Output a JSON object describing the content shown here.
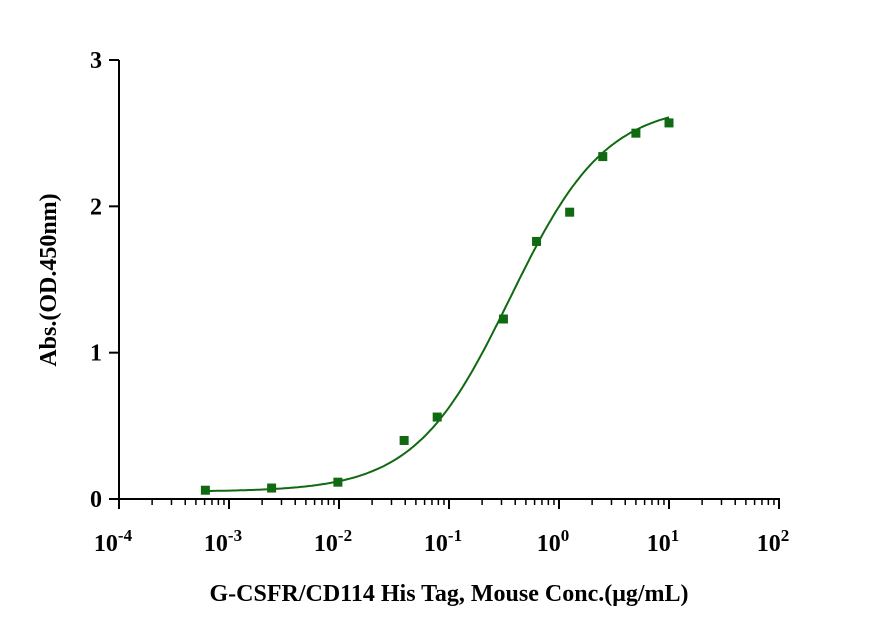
{
  "chart_data": {
    "type": "scatter",
    "title": "",
    "xlabel": "G-CSFR/CD114 His Tag, Mouse Conc.(μg/mL)",
    "ylabel": "Abs.(OD.450nm)",
    "xscale": "log",
    "xlim": [
      0.0001,
      100
    ],
    "ylim": [
      0,
      3
    ],
    "x_ticks": [
      {
        "base": "10",
        "exp": "-4",
        "value": 0.0001
      },
      {
        "base": "10",
        "exp": "-3",
        "value": 0.001
      },
      {
        "base": "10",
        "exp": "-2",
        "value": 0.01
      },
      {
        "base": "10",
        "exp": "-1",
        "value": 0.1
      },
      {
        "base": "10",
        "exp": "0",
        "value": 1
      },
      {
        "base": "10",
        "exp": "1",
        "value": 10
      },
      {
        "base": "10",
        "exp": "2",
        "value": 100
      }
    ],
    "y_ticks": [
      {
        "label": "0",
        "value": 0
      },
      {
        "label": "1",
        "value": 1
      },
      {
        "label": "2",
        "value": 2
      },
      {
        "label": "3",
        "value": 3
      }
    ],
    "grid": false,
    "series": [
      {
        "name": "G-CSFR/CD114 His Tag, Mouse",
        "color": "#0f6a12",
        "marker": "square",
        "x": [
          0.00061,
          0.00244,
          0.00977,
          0.0391,
          0.0781,
          0.3125,
          0.625,
          1.25,
          2.5,
          5,
          10
        ],
        "y": [
          0.06,
          0.075,
          0.115,
          0.4,
          0.56,
          1.23,
          1.76,
          1.96,
          2.34,
          2.5,
          2.57
        ],
        "fit": {
          "model": "4PL",
          "bottom": 0.05,
          "top": 2.7,
          "ec50": 0.36,
          "hill": 1.0
        }
      }
    ]
  }
}
